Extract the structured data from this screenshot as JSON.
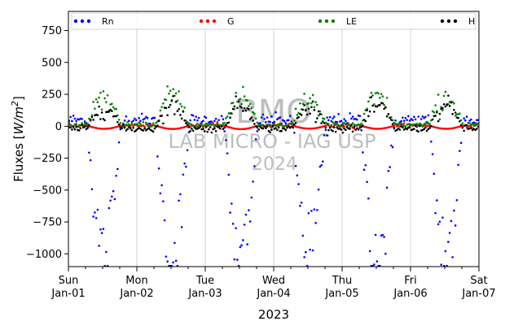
{
  "chart_data": {
    "type": "scatter",
    "title": "",
    "xlabel": "2023",
    "ylabel": "Fluxes [W/m²]",
    "ylabel_main": "Fluxes [",
    "ylabel_unit_base": "W/m",
    "ylabel_unit_exp": "2",
    "ylabel_close": "]",
    "xlim_hours": [
      0,
      144
    ],
    "ylim": [
      -1100,
      900
    ],
    "yticks": [
      750,
      500,
      250,
      0,
      -250,
      -500,
      -750,
      -1000
    ],
    "x_ticks": [
      {
        "hours": 0,
        "day": "Sun",
        "date": "Jan-01"
      },
      {
        "hours": 24,
        "day": "Mon",
        "date": "Jan-02"
      },
      {
        "hours": 48,
        "day": "Tue",
        "date": "Jan-03"
      },
      {
        "hours": 72,
        "day": "Wed",
        "date": "Jan-04"
      },
      {
        "hours": 96,
        "day": "Thu",
        "date": "Jan-05"
      },
      {
        "hours": 120,
        "day": "Fri",
        "date": "Jan-06"
      },
      {
        "hours": 144,
        "day": "Sat",
        "date": "Jan-07"
      }
    ],
    "grid": "vertical",
    "legend": {
      "placement": "top"
    },
    "watermark": [
      "BMO",
      "LAB MICRO - IAG USP",
      "2024"
    ],
    "series": [
      {
        "name": "Rn",
        "color": "#0000ff",
        "night": 50,
        "peak": -1000,
        "spread": 0.5
      },
      {
        "name": "G",
        "color": "#ff0000",
        "night": 5,
        "peak": -20,
        "spread": 0.05
      },
      {
        "name": "LE",
        "color": "#008000",
        "night": 10,
        "peak": 220,
        "spread": 0.6
      },
      {
        "name": "H",
        "color": "#000000",
        "night": -20,
        "peak": 150,
        "spread": 0.6
      }
    ]
  }
}
